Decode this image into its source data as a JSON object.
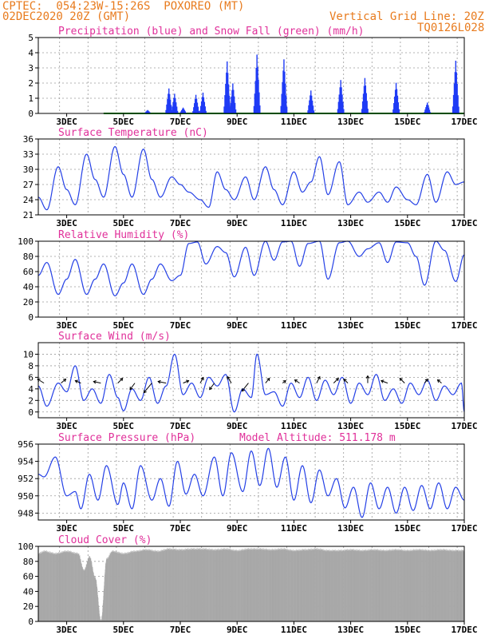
{
  "header": {
    "line1": "CPTEC:  054:23W-15:26S  POXOREO (MT)",
    "line2": "02DEC2020 20Z (GMT)",
    "grid_note": "Vertical Grid Line: 20Z",
    "code": "TQ0126L028"
  },
  "colors": {
    "header": "#e87b1e",
    "title": "#e0309a",
    "precip": "#1f3bf5",
    "snow": "#009900",
    "series": "#2440e6",
    "wind_vector": "#000000",
    "cloud": "#a8a8a8"
  },
  "chart_data": [
    {
      "type": "bar",
      "title": "Precipitation (blue) and Snow Fall (green) (mm/h)",
      "x_tick_labels": [
        "3DEC",
        "5DEC",
        "7DEC",
        "9DEC",
        "11DEC",
        "13DEC",
        "15DEC",
        "17DEC"
      ],
      "ylim": [
        0,
        5
      ],
      "y_ticks": [
        0,
        1,
        2,
        3,
        4,
        5
      ],
      "grid": true,
      "series": [
        {
          "name": "Precipitation",
          "color": "#1f3bf5",
          "events": [
            {
              "day": 5.85,
              "value": 0.3
            },
            {
              "day": 6.6,
              "value": 1.8
            },
            {
              "day": 6.8,
              "value": 1.3
            },
            {
              "day": 7.1,
              "value": 0.4
            },
            {
              "day": 7.55,
              "value": 1.5
            },
            {
              "day": 7.8,
              "value": 1.6
            },
            {
              "day": 8.65,
              "value": 3.5
            },
            {
              "day": 8.85,
              "value": 2.0
            },
            {
              "day": 9.7,
              "value": 4.4
            },
            {
              "day": 10.65,
              "value": 4.5
            },
            {
              "day": 11.6,
              "value": 1.6
            },
            {
              "day": 12.65,
              "value": 2.2
            },
            {
              "day": 13.5,
              "value": 2.5
            },
            {
              "day": 14.6,
              "value": 2.6
            },
            {
              "day": 15.7,
              "value": 0.8
            },
            {
              "day": 16.7,
              "value": 3.5
            }
          ]
        },
        {
          "name": "Snow Fall",
          "color": "#009900",
          "value": 0
        }
      ]
    },
    {
      "type": "line",
      "title": "Surface Temperature (nC)",
      "x_tick_labels": [
        "3DEC",
        "5DEC",
        "7DEC",
        "9DEC",
        "11DEC",
        "13DEC",
        "15DEC",
        "17DEC"
      ],
      "ylim": [
        21,
        36
      ],
      "y_ticks": [
        21,
        24,
        27,
        30,
        33,
        36
      ],
      "grid": true,
      "keypoints": [
        [
          2.0,
          24.5
        ],
        [
          2.3,
          22.0
        ],
        [
          2.7,
          30.5
        ],
        [
          3.0,
          26.0
        ],
        [
          3.3,
          23.0
        ],
        [
          3.7,
          33.0
        ],
        [
          4.0,
          28.0
        ],
        [
          4.3,
          24.5
        ],
        [
          4.7,
          34.5
        ],
        [
          5.0,
          29.0
        ],
        [
          5.3,
          24.5
        ],
        [
          5.7,
          34.0
        ],
        [
          6.0,
          28.0
        ],
        [
          6.3,
          24.5
        ],
        [
          6.7,
          28.5
        ],
        [
          7.0,
          27.0
        ],
        [
          7.3,
          25.5
        ],
        [
          7.7,
          24.0
        ],
        [
          8.0,
          22.5
        ],
        [
          8.3,
          29.5
        ],
        [
          8.6,
          26.0
        ],
        [
          8.9,
          24.0
        ],
        [
          9.3,
          28.5
        ],
        [
          9.6,
          24.0
        ],
        [
          10.0,
          30.5
        ],
        [
          10.3,
          26.0
        ],
        [
          10.6,
          23.0
        ],
        [
          11.0,
          29.5
        ],
        [
          11.3,
          25.5
        ],
        [
          11.6,
          27.5
        ],
        [
          11.9,
          32.5
        ],
        [
          12.2,
          25.0
        ],
        [
          12.6,
          31.5
        ],
        [
          12.9,
          23.0
        ],
        [
          13.3,
          25.5
        ],
        [
          13.6,
          23.5
        ],
        [
          14.0,
          25.5
        ],
        [
          14.3,
          23.5
        ],
        [
          14.6,
          26.5
        ],
        [
          15.0,
          24.0
        ],
        [
          15.3,
          23.0
        ],
        [
          15.7,
          29.0
        ],
        [
          16.0,
          23.5
        ],
        [
          16.4,
          29.5
        ],
        [
          16.7,
          27.0
        ],
        [
          17.0,
          27.5
        ]
      ]
    },
    {
      "type": "line",
      "title": "Relative Humidity (%)",
      "x_tick_labels": [
        "3DEC",
        "5DEC",
        "7DEC",
        "9DEC",
        "11DEC",
        "13DEC",
        "15DEC",
        "17DEC"
      ],
      "ylim": [
        0,
        100
      ],
      "y_ticks": [
        0,
        20,
        40,
        60,
        80,
        100
      ],
      "grid": true,
      "keypoints": [
        [
          2.0,
          55
        ],
        [
          2.3,
          72
        ],
        [
          2.7,
          30
        ],
        [
          3.0,
          50
        ],
        [
          3.3,
          76
        ],
        [
          3.7,
          30
        ],
        [
          4.0,
          50
        ],
        [
          4.3,
          70
        ],
        [
          4.7,
          28
        ],
        [
          5.0,
          45
        ],
        [
          5.3,
          70
        ],
        [
          5.7,
          30
        ],
        [
          6.0,
          50
        ],
        [
          6.3,
          70
        ],
        [
          6.7,
          48
        ],
        [
          7.0,
          55
        ],
        [
          7.3,
          97
        ],
        [
          7.6,
          99
        ],
        [
          7.9,
          70
        ],
        [
          8.3,
          93
        ],
        [
          8.6,
          85
        ],
        [
          8.9,
          53
        ],
        [
          9.3,
          92
        ],
        [
          9.6,
          55
        ],
        [
          10.0,
          100
        ],
        [
          10.3,
          75
        ],
        [
          10.6,
          99
        ],
        [
          10.9,
          100
        ],
        [
          11.2,
          67
        ],
        [
          11.5,
          97
        ],
        [
          11.9,
          100
        ],
        [
          12.2,
          50
        ],
        [
          12.6,
          98
        ],
        [
          12.9,
          100
        ],
        [
          13.3,
          80
        ],
        [
          13.6,
          90
        ],
        [
          14.0,
          98
        ],
        [
          14.3,
          72
        ],
        [
          14.6,
          99
        ],
        [
          15.0,
          98
        ],
        [
          15.3,
          80
        ],
        [
          15.6,
          42
        ],
        [
          16.0,
          100
        ],
        [
          16.3,
          88
        ],
        [
          16.7,
          47
        ],
        [
          17.0,
          82
        ]
      ]
    },
    {
      "type": "line",
      "title": "Surface Wind (m/s)",
      "x_tick_labels": [
        "3DEC",
        "5DEC",
        "7DEC",
        "9DEC",
        "11DEC",
        "13DEC",
        "15DEC",
        "17DEC"
      ],
      "ylim": [
        -1,
        12
      ],
      "y_ticks": [
        0,
        2,
        4,
        6,
        8,
        10
      ],
      "grid": true,
      "keypoints": [
        [
          2.0,
          4.5
        ],
        [
          2.3,
          1.0
        ],
        [
          2.7,
          5.0
        ],
        [
          3.0,
          3.5
        ],
        [
          3.3,
          8.0
        ],
        [
          3.6,
          2.0
        ],
        [
          3.9,
          4.0
        ],
        [
          4.2,
          1.5
        ],
        [
          4.5,
          6.5
        ],
        [
          4.8,
          2.5
        ],
        [
          5.0,
          0.2
        ],
        [
          5.3,
          4.0
        ],
        [
          5.6,
          2.0
        ],
        [
          5.9,
          6.0
        ],
        [
          6.2,
          1.5
        ],
        [
          6.5,
          4.5
        ],
        [
          6.8,
          10.0
        ],
        [
          7.1,
          3.0
        ],
        [
          7.4,
          5.0
        ],
        [
          7.7,
          2.5
        ],
        [
          8.0,
          6.0
        ],
        [
          8.3,
          4.5
        ],
        [
          8.6,
          6.5
        ],
        [
          8.9,
          0.0
        ],
        [
          9.2,
          4.0
        ],
        [
          9.5,
          2.5
        ],
        [
          9.7,
          10.0
        ],
        [
          10.0,
          3.0
        ],
        [
          10.3,
          3.5
        ],
        [
          10.6,
          1.0
        ],
        [
          10.9,
          5.0
        ],
        [
          11.2,
          2.5
        ],
        [
          11.5,
          6.0
        ],
        [
          11.8,
          2.0
        ],
        [
          12.1,
          5.5
        ],
        [
          12.4,
          3.0
        ],
        [
          12.7,
          6.0
        ],
        [
          13.0,
          1.5
        ],
        [
          13.3,
          5.0
        ],
        [
          13.6,
          3.0
        ],
        [
          13.9,
          6.5
        ],
        [
          14.2,
          2.0
        ],
        [
          14.5,
          4.0
        ],
        [
          14.8,
          1.5
        ],
        [
          15.1,
          5.0
        ],
        [
          15.4,
          3.0
        ],
        [
          15.7,
          5.5
        ],
        [
          16.0,
          2.0
        ],
        [
          16.3,
          4.5
        ],
        [
          16.6,
          3.0
        ],
        [
          16.9,
          5.0
        ],
        [
          17.0,
          0.0
        ]
      ],
      "vectors": [
        {
          "day": 2.2,
          "dx": -8,
          "dy": -5
        },
        {
          "day": 2.8,
          "dx": 6,
          "dy": -5
        },
        {
          "day": 3.5,
          "dx": -7,
          "dy": -3
        },
        {
          "day": 4.2,
          "dx": -9,
          "dy": -2
        },
        {
          "day": 4.8,
          "dx": 6,
          "dy": -6
        },
        {
          "day": 5.4,
          "dx": -6,
          "dy": 8
        },
        {
          "day": 6.0,
          "dx": -10,
          "dy": 12
        },
        {
          "day": 6.5,
          "dx": -10,
          "dy": -2
        },
        {
          "day": 7.1,
          "dx": 7,
          "dy": -3
        },
        {
          "day": 7.7,
          "dx": 4,
          "dy": -7
        },
        {
          "day": 8.2,
          "dx": -6,
          "dy": 8
        },
        {
          "day": 8.8,
          "dx": -5,
          "dy": -8
        },
        {
          "day": 9.4,
          "dx": -8,
          "dy": 10
        },
        {
          "day": 10.0,
          "dx": 5,
          "dy": -6
        },
        {
          "day": 10.6,
          "dx": 4,
          "dy": -3
        },
        {
          "day": 11.2,
          "dx": -6,
          "dy": -4
        },
        {
          "day": 11.8,
          "dx": 4,
          "dy": -8
        },
        {
          "day": 12.4,
          "dx": 6,
          "dy": -6
        },
        {
          "day": 12.9,
          "dx": -5,
          "dy": -5
        },
        {
          "day": 13.6,
          "dx": 0,
          "dy": -9
        },
        {
          "day": 14.3,
          "dx": -8,
          "dy": -3
        },
        {
          "day": 14.9,
          "dx": -6,
          "dy": -6
        },
        {
          "day": 15.6,
          "dx": 4,
          "dy": -5
        },
        {
          "day": 16.2,
          "dx": -5,
          "dy": -4
        }
      ]
    },
    {
      "type": "line",
      "title": "Surface Pressure (hPa)",
      "annotation": "Model Altitude: 511.178 m",
      "x_tick_labels": [
        "3DEC",
        "5DEC",
        "7DEC",
        "9DEC",
        "11DEC",
        "13DEC",
        "15DEC",
        "17DEC"
      ],
      "ylim": [
        947.2,
        956
      ],
      "y_ticks": [
        948,
        950,
        952,
        954,
        956
      ],
      "grid": true,
      "keypoints": [
        [
          2.0,
          952.5
        ],
        [
          2.2,
          952.2
        ],
        [
          2.6,
          954.5
        ],
        [
          3.0,
          950.0
        ],
        [
          3.3,
          950.5
        ],
        [
          3.5,
          948.5
        ],
        [
          3.8,
          952.5
        ],
        [
          4.1,
          949.5
        ],
        [
          4.4,
          953.5
        ],
        [
          4.8,
          949.0
        ],
        [
          5.0,
          951.5
        ],
        [
          5.3,
          948.5
        ],
        [
          5.6,
          953.5
        ],
        [
          6.0,
          949.5
        ],
        [
          6.3,
          952.0
        ],
        [
          6.6,
          948.8
        ],
        [
          6.9,
          954.0
        ],
        [
          7.2,
          950.2
        ],
        [
          7.5,
          952.5
        ],
        [
          7.8,
          950.0
        ],
        [
          8.2,
          954.5
        ],
        [
          8.5,
          950.0
        ],
        [
          8.8,
          955.0
        ],
        [
          9.2,
          950.5
        ],
        [
          9.5,
          955.2
        ],
        [
          9.8,
          951.2
        ],
        [
          10.1,
          955.5
        ],
        [
          10.4,
          951.0
        ],
        [
          10.7,
          954.5
        ],
        [
          11.0,
          949.5
        ],
        [
          11.3,
          953.5
        ],
        [
          11.6,
          949.2
        ],
        [
          11.9,
          953.0
        ],
        [
          12.2,
          950.0
        ],
        [
          12.5,
          952.0
        ],
        [
          12.8,
          948.6
        ],
        [
          13.1,
          951.0
        ],
        [
          13.4,
          947.5
        ],
        [
          13.7,
          951.5
        ],
        [
          14.0,
          948.5
        ],
        [
          14.3,
          951.0
        ],
        [
          14.6,
          948.0
        ],
        [
          14.9,
          951.0
        ],
        [
          15.2,
          948.3
        ],
        [
          15.5,
          951.2
        ],
        [
          15.8,
          948.5
        ],
        [
          16.1,
          951.5
        ],
        [
          16.4,
          948.5
        ],
        [
          16.7,
          951.0
        ],
        [
          17.0,
          949.5
        ]
      ]
    },
    {
      "type": "bar",
      "title": "Cloud Cover (%)",
      "x_tick_labels": [
        "3DEC",
        "5DEC",
        "7DEC",
        "9DEC",
        "11DEC",
        "13DEC",
        "15DEC",
        "17DEC"
      ],
      "ylim": [
        0,
        100
      ],
      "y_ticks": [
        0,
        20,
        40,
        60,
        80,
        100
      ],
      "grid": true,
      "series_color": "#a8a8a8",
      "keypoints": [
        [
          2.0,
          92
        ],
        [
          2.2,
          95
        ],
        [
          2.6,
          92
        ],
        [
          3.0,
          95
        ],
        [
          3.4,
          92
        ],
        [
          3.6,
          70
        ],
        [
          3.8,
          88
        ],
        [
          4.0,
          60
        ],
        [
          4.2,
          3
        ],
        [
          4.4,
          85
        ],
        [
          4.6,
          95
        ],
        [
          5.0,
          92
        ],
        [
          5.4,
          95
        ],
        [
          5.8,
          97
        ],
        [
          6.2,
          95
        ],
        [
          6.6,
          98
        ],
        [
          7.0,
          97
        ],
        [
          7.4,
          98
        ],
        [
          7.8,
          98
        ],
        [
          8.2,
          97
        ],
        [
          8.6,
          98
        ],
        [
          9.0,
          96
        ],
        [
          9.4,
          98
        ],
        [
          9.8,
          98
        ],
        [
          10.2,
          97
        ],
        [
          10.6,
          98
        ],
        [
          11.0,
          96
        ],
        [
          11.4,
          97
        ],
        [
          11.8,
          98
        ],
        [
          12.2,
          96
        ],
        [
          12.6,
          96
        ],
        [
          13.0,
          97
        ],
        [
          13.4,
          96
        ],
        [
          13.8,
          97
        ],
        [
          14.2,
          96
        ],
        [
          14.6,
          97
        ],
        [
          15.0,
          96
        ],
        [
          15.4,
          97
        ],
        [
          15.8,
          96
        ],
        [
          16.2,
          97
        ],
        [
          16.6,
          96
        ],
        [
          17.0,
          96
        ]
      ]
    }
  ]
}
